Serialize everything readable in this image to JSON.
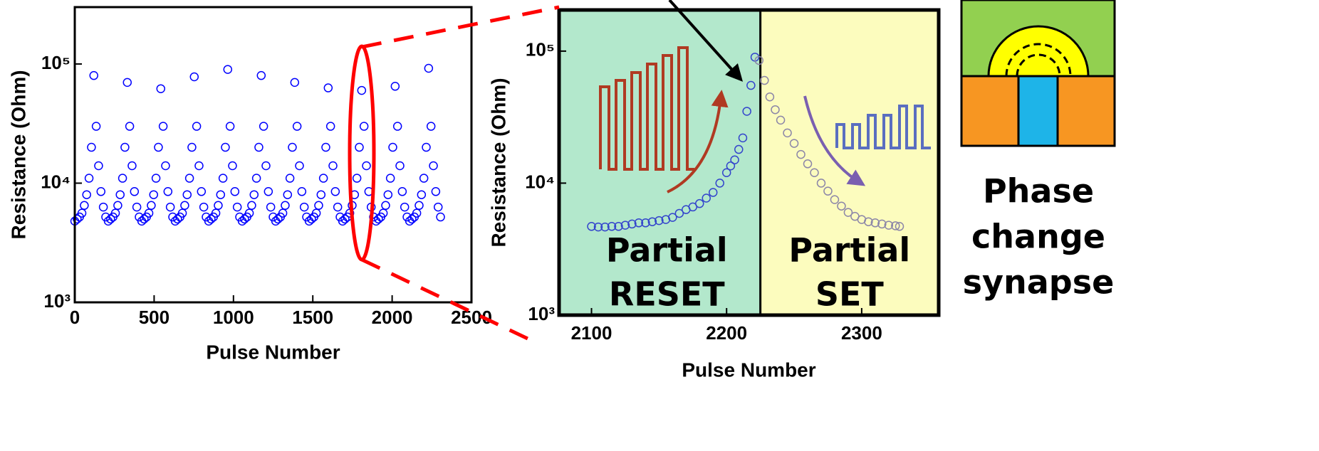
{
  "chart_data": [
    {
      "type": "scatter",
      "xlabel": "Pulse Number",
      "ylabel": "Resistance (Ohm)",
      "log_y": true,
      "xlim": [
        0,
        2500
      ],
      "xticks": [
        0,
        500,
        1000,
        1500,
        2000,
        2500
      ],
      "ylim": [
        1000,
        300000
      ],
      "yticks": [
        {
          "value": 1000,
          "label": "10³"
        },
        {
          "value": 10000,
          "label": "10⁴"
        },
        {
          "value": 100000,
          "label": "10⁵"
        }
      ],
      "series": [
        {
          "color": "#0000ff",
          "x": [
            0,
            15,
            30,
            45,
            60,
            75,
            90,
            105,
            120,
            135,
            150,
            165,
            180,
            195,
            211,
            226,
            241,
            256,
            271,
            286,
            301,
            316,
            331,
            346,
            361,
            376,
            391,
            406,
            422,
            437,
            452,
            467,
            482,
            497,
            512,
            527,
            542,
            557,
            572,
            587,
            602,
            617,
            633,
            648,
            663,
            678,
            693,
            708,
            723,
            738,
            753,
            768,
            783,
            798,
            813,
            828,
            844,
            859,
            874,
            889,
            904,
            919,
            934,
            949,
            964,
            979,
            994,
            1009,
            1024,
            1039,
            1055,
            1070,
            1085,
            1100,
            1115,
            1130,
            1145,
            1160,
            1175,
            1190,
            1205,
            1220,
            1235,
            1250,
            1266,
            1281,
            1296,
            1311,
            1326,
            1341,
            1356,
            1371,
            1386,
            1401,
            1416,
            1431,
            1446,
            1461,
            1477,
            1492,
            1507,
            1522,
            1537,
            1552,
            1567,
            1582,
            1597,
            1612,
            1627,
            1642,
            1657,
            1672,
            1688,
            1703,
            1718,
            1733,
            1748,
            1763,
            1778,
            1793,
            1808,
            1823,
            1838,
            1853,
            1868,
            1883,
            1899,
            1914,
            1929,
            1944,
            1959,
            1974,
            1989,
            2004,
            2019,
            2034,
            2049,
            2064,
            2079,
            2094,
            2110,
            2125,
            2140,
            2155,
            2170,
            2185,
            2200,
            2215,
            2230,
            2245,
            2260,
            2275,
            2290,
            2305
          ],
          "values": [
            4800,
            5000,
            5200,
            5600,
            6500,
            8000,
            11000,
            20000,
            80000,
            30000,
            14000,
            8500,
            6300,
            5200,
            4800,
            5000,
            5200,
            5600,
            6500,
            8000,
            11000,
            20000,
            70000,
            30000,
            14000,
            8500,
            6300,
            5200,
            4800,
            5000,
            5200,
            5600,
            6500,
            8000,
            11000,
            20000,
            62000,
            30000,
            14000,
            8500,
            6300,
            5200,
            4800,
            5000,
            5200,
            5600,
            6500,
            8000,
            11000,
            20000,
            78000,
            30000,
            14000,
            8500,
            6300,
            5200,
            4800,
            5000,
            5200,
            5600,
            6500,
            8000,
            11000,
            20000,
            90000,
            30000,
            14000,
            8500,
            6300,
            5200,
            4800,
            5000,
            5200,
            5600,
            6500,
            8000,
            11000,
            20000,
            80000,
            30000,
            14000,
            8500,
            6300,
            5200,
            4800,
            5000,
            5200,
            5600,
            6500,
            8000,
            11000,
            20000,
            70000,
            30000,
            14000,
            8500,
            6300,
            5200,
            4800,
            5000,
            5200,
            5600,
            6500,
            8000,
            11000,
            20000,
            63000,
            30000,
            14000,
            8500,
            6300,
            5200,
            4800,
            5000,
            5200,
            5600,
            6500,
            8000,
            11000,
            20000,
            60000,
            30000,
            14000,
            8500,
            6300,
            5200,
            4800,
            5000,
            5200,
            5600,
            6500,
            8000,
            11000,
            20000,
            65000,
            30000,
            14000,
            8500,
            6300,
            5200,
            4800,
            5000,
            5200,
            5600,
            6500,
            8000,
            11000,
            20000,
            92000,
            30000,
            14000,
            8500,
            6300,
            5200
          ]
        }
      ]
    },
    {
      "type": "scatter",
      "xlabel": "Pulse Number",
      "ylabel": "Resistance (Ohm)",
      "log_y": true,
      "xlim": [
        2076,
        2357
      ],
      "xticks": [
        2100,
        2200,
        2300
      ],
      "ylim": [
        1000,
        205000
      ],
      "yticks": [
        {
          "value": 1000,
          "label": "10³"
        },
        {
          "value": 10000,
          "label": "10⁴"
        },
        {
          "value": 100000,
          "label": "10⁵"
        }
      ],
      "regions": [
        {
          "xlim": [
            2076,
            2225
          ],
          "color": "#b3e8cc"
        },
        {
          "xlim": [
            2225,
            2357
          ],
          "color": "#fcfcbe"
        }
      ],
      "annotations": [
        [
          "Partial",
          "RESET"
        ],
        [
          "Partial",
          "SET"
        ]
      ],
      "series": [
        {
          "color": "#3344cc",
          "x": [
            2100,
            2105,
            2110,
            2115,
            2120,
            2125,
            2130,
            2135,
            2140,
            2145,
            2150,
            2155,
            2160,
            2165,
            2170,
            2175,
            2180,
            2185,
            2190,
            2195,
            2200,
            2203,
            2206,
            2209,
            2212,
            2215,
            2218,
            2221
          ],
          "values": [
            4700,
            4650,
            4650,
            4700,
            4700,
            4800,
            4900,
            5000,
            5000,
            5100,
            5200,
            5300,
            5500,
            5900,
            6300,
            6600,
            7000,
            7700,
            8500,
            10000,
            12000,
            13500,
            15000,
            18000,
            22000,
            35000,
            55000,
            90000
          ]
        },
        {
          "color": "#8c86a8",
          "x": [
            2224,
            2228,
            2232,
            2236,
            2240,
            2245,
            2250,
            2255,
            2260,
            2265,
            2270,
            2275,
            2280,
            2285,
            2290,
            2295,
            2300,
            2305,
            2310,
            2315,
            2320,
            2325,
            2328
          ],
          "values": [
            85000,
            60000,
            45000,
            36000,
            30000,
            24000,
            20000,
            16500,
            14000,
            12000,
            10000,
            8700,
            7500,
            6700,
            6000,
            5600,
            5300,
            5100,
            5000,
            4900,
            4800,
            4750,
            4700
          ]
        }
      ]
    }
  ],
  "diagram": {
    "label": [
      "Phase",
      "change",
      "synapse"
    ]
  }
}
